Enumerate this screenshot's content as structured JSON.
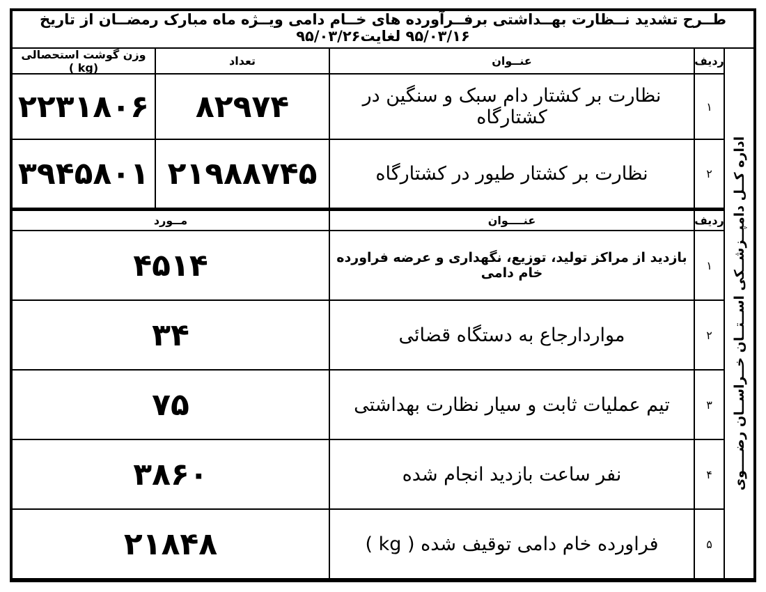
{
  "title": "طــرح تشدید نــظارت بهــداشتی برفــرآورده های خــام دامی ویــژه ماه مبارک رمضــان از تاریخ ۹۵/۰۳/۱۶ لغایت۹۵/۰۳/۲۶",
  "side_label": "اداره کــل دامپــزشــکی اســتــان خــراســان رضــــوی",
  "colors": {
    "border": "#000000",
    "background": "#ffffff",
    "text": "#000000"
  },
  "table1": {
    "headers": {
      "row": "ردیف",
      "title": "عنــوان",
      "count": "تعداد",
      "weight": "وزن گوشت استحصالی (kg )"
    },
    "rows": [
      {
        "no": "۱",
        "title": "نظارت بر کشتار دام سبک و سنگین در کشتارگاه",
        "count": "۸۲۹۷۴",
        "weight": "۲۲۳۱۸۰۶"
      },
      {
        "no": "۲",
        "title": "نظارت بر کشتار طیور در کشتارگاه",
        "count": "۲۱۹۸۸۷۴۵",
        "weight": "۳۹۴۵۸۰۱"
      }
    ]
  },
  "table2": {
    "headers": {
      "row": "ردیف",
      "title": "عنــــوان",
      "cases": "مــورد"
    },
    "rows": [
      {
        "no": "۱",
        "title": "بازدید از مراکز تولید، توزیع، نگهداری و عرضه فراورده خام دامی",
        "cases": "۴۵۱۴"
      },
      {
        "no": "۲",
        "title": "مواردارجاع به دستگاه قضائی",
        "cases": "۳۴"
      },
      {
        "no": "۳",
        "title": "تیم عملیات ثابت و سیار نظارت بهداشتی",
        "cases": "۷۵"
      },
      {
        "no": "۴",
        "title": "نفر ساعت بازدید انجام شده",
        "cases": "۳۸۶۰"
      },
      {
        "no": "۵",
        "title": "فراورده خام دامی توقیف شده ( kg )",
        "cases": "۲۱۸۴۸"
      }
    ]
  }
}
